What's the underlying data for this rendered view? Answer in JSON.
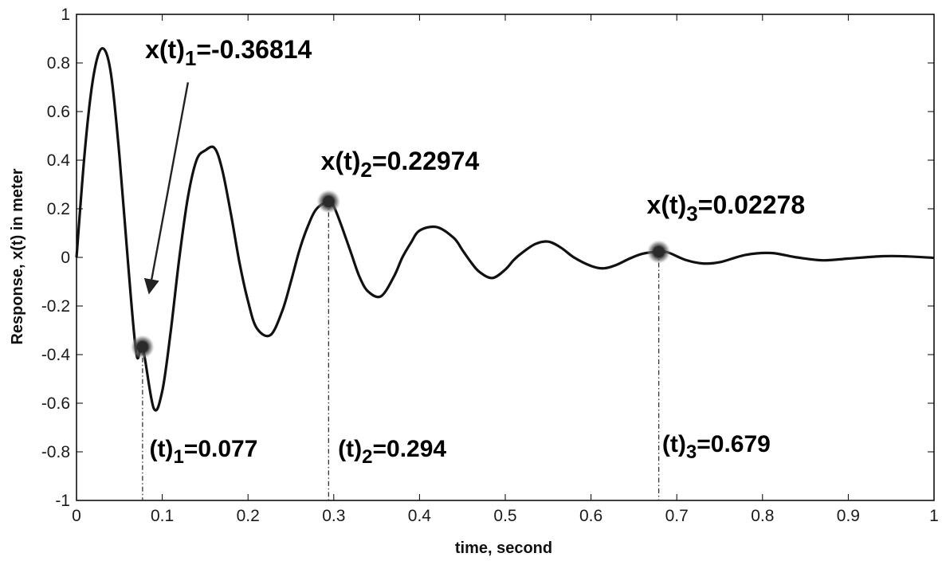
{
  "chart_data": {
    "type": "line",
    "xlabel": "time, second",
    "ylabel": "Response, x(t) in meter",
    "xlim": [
      0,
      1
    ],
    "ylim": [
      -1,
      1
    ],
    "xticks": [
      0,
      0.1,
      0.2,
      0.3,
      0.4,
      0.5,
      0.6,
      0.7,
      0.8,
      0.9,
      1
    ],
    "xtick_labels": [
      "0",
      "0.1",
      "0.2",
      "0.3",
      "0.4",
      "0.5",
      "0.6",
      "0.7",
      "0.8",
      "0.9",
      "1"
    ],
    "yticks": [
      -1,
      -0.8,
      -0.6,
      -0.4,
      -0.2,
      0,
      0.2,
      0.4,
      0.6,
      0.8,
      1
    ],
    "ytick_labels": [
      "-1",
      "-0.8",
      "-0.6",
      "-0.4",
      "-0.2",
      "0",
      "0.2",
      "0.4",
      "0.6",
      "0.8",
      "1"
    ],
    "grid": false,
    "series": [
      {
        "x": [
          0.0,
          0.01,
          0.02,
          0.03,
          0.04,
          0.05,
          0.06,
          0.07,
          0.077,
          0.09,
          0.1,
          0.11,
          0.12,
          0.13,
          0.14,
          0.15,
          0.161,
          0.17,
          0.18,
          0.19,
          0.2,
          0.21,
          0.226,
          0.24,
          0.25,
          0.26,
          0.27,
          0.28,
          0.294,
          0.3,
          0.31,
          0.32,
          0.33,
          0.34,
          0.355,
          0.37,
          0.38,
          0.39,
          0.4,
          0.42,
          0.44,
          0.45,
          0.46,
          0.47,
          0.485,
          0.5,
          0.51,
          0.52,
          0.535,
          0.55,
          0.565,
          0.58,
          0.6,
          0.615,
          0.63,
          0.645,
          0.66,
          0.679,
          0.69,
          0.71,
          0.73,
          0.75,
          0.78,
          0.81,
          0.84,
          0.87,
          0.9,
          0.94,
          0.97,
          1.0
        ],
        "y": [
          0.0,
          0.45,
          0.75,
          0.86,
          0.76,
          0.42,
          -0.02,
          -0.4,
          -0.368,
          -0.62,
          -0.55,
          -0.3,
          0.0,
          0.25,
          0.4,
          0.44,
          0.45,
          0.36,
          0.18,
          -0.02,
          -0.18,
          -0.29,
          -0.32,
          -0.22,
          -0.1,
          0.03,
          0.13,
          0.2,
          0.23,
          0.21,
          0.12,
          0.02,
          -0.08,
          -0.14,
          -0.16,
          -0.08,
          0.0,
          0.06,
          0.11,
          0.125,
          0.08,
          0.03,
          -0.02,
          -0.06,
          -0.085,
          -0.05,
          -0.01,
          0.02,
          0.055,
          0.065,
          0.04,
          0.0,
          -0.035,
          -0.045,
          -0.03,
          -0.005,
          0.015,
          0.023,
          0.02,
          -0.01,
          -0.025,
          -0.02,
          0.01,
          0.018,
          0.0,
          -0.012,
          -0.005,
          0.005,
          0.004,
          -0.002
        ]
      }
    ],
    "highlighted_points": [
      {
        "x": 0.077,
        "y": -0.36814
      },
      {
        "x": 0.294,
        "y": 0.22974
      },
      {
        "x": 0.679,
        "y": 0.02278
      }
    ],
    "annotations": [
      {
        "base": "x(t)",
        "sub": "1",
        "rest": "=-0.36814",
        "x": 0.08,
        "y": 0.82,
        "size": 32
      },
      {
        "base": "x(t)",
        "sub": "2",
        "rest": "=0.22974",
        "x": 0.285,
        "y": 0.36,
        "size": 32
      },
      {
        "base": "x(t)",
        "sub": "3",
        "rest": "=0.02278",
        "x": 0.665,
        "y": 0.18,
        "size": 32
      },
      {
        "base": "(t)",
        "sub": "1",
        "rest": "=0.077",
        "x": 0.085,
        "y": -0.82,
        "size": 30
      },
      {
        "base": "(t)",
        "sub": "2",
        "rest": "=0.294",
        "x": 0.305,
        "y": -0.82,
        "size": 30
      },
      {
        "base": "(t)",
        "sub": "3",
        "rest": "=0.679",
        "x": 0.683,
        "y": -0.8,
        "size": 30
      }
    ],
    "arrow": {
      "from": [
        0.13,
        0.72
      ],
      "to": [
        0.085,
        -0.14
      ]
    }
  }
}
